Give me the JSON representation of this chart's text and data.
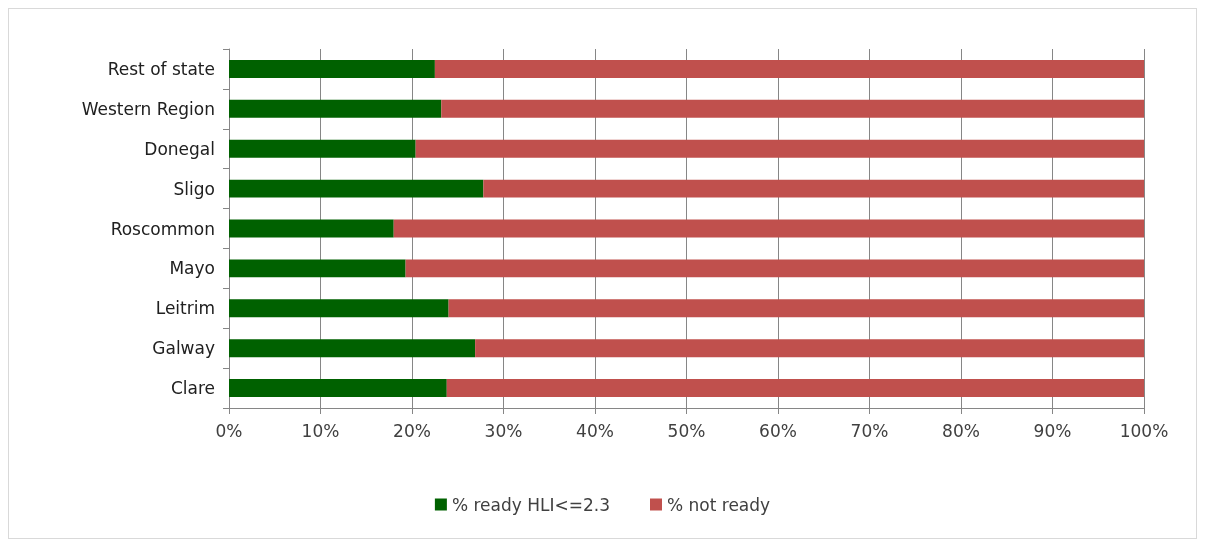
{
  "chart_data": {
    "type": "bar",
    "orientation": "horizontal",
    "stacked": true,
    "categories": [
      "Rest of state",
      "Western Region",
      "Donegal",
      "Sligo",
      "Roscommon",
      "Mayo",
      "Leitrim",
      "Galway",
      "Clare"
    ],
    "series": [
      {
        "name": "% ready HLI<=2.3",
        "color": "#006100",
        "values": [
          22.5,
          23.2,
          20.4,
          27.8,
          18.0,
          19.3,
          24.0,
          26.9,
          23.8
        ]
      },
      {
        "name": "% not ready",
        "color": "#c0504d",
        "values": [
          77.5,
          76.8,
          79.6,
          72.2,
          82.0,
          80.7,
          76.0,
          73.1,
          76.2
        ]
      }
    ],
    "xlim": [
      0,
      100
    ],
    "xticks": [
      {
        "value": 0,
        "label": "0%"
      },
      {
        "value": 10,
        "label": "10%"
      },
      {
        "value": 20,
        "label": "20%"
      },
      {
        "value": 30,
        "label": "30%"
      },
      {
        "value": 40,
        "label": "40%"
      },
      {
        "value": 50,
        "label": "50%"
      },
      {
        "value": 60,
        "label": "60%"
      },
      {
        "value": 70,
        "label": "70%"
      },
      {
        "value": 80,
        "label": "80%"
      },
      {
        "value": 90,
        "label": "90%"
      },
      {
        "value": 100,
        "label": "100%"
      }
    ],
    "grid": "x",
    "legend": "bottom"
  }
}
